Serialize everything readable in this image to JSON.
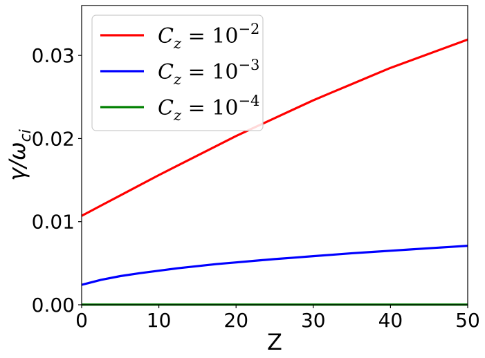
{
  "chart_data": {
    "type": "line",
    "xlabel": "Z",
    "ylabel": "γ/ω_ci",
    "xlim": [
      0,
      50
    ],
    "ylim": [
      0,
      0.036
    ],
    "x_ticks": [
      "0",
      "10",
      "20",
      "30",
      "40",
      "50"
    ],
    "y_ticks": [
      "0.00",
      "0.01",
      "0.02",
      "0.03"
    ],
    "legend_position": "upper-left",
    "grid": false,
    "x": [
      0,
      2.5,
      5,
      7.5,
      10,
      12.5,
      15,
      17.5,
      20,
      22.5,
      25,
      27.5,
      30,
      32.5,
      35,
      37.5,
      40,
      42.5,
      45,
      47.5,
      50
    ],
    "series": [
      {
        "name": "C_z = 10^-2",
        "legend_base": "C",
        "legend_sub": "z",
        "legend_eq": " = 10",
        "legend_exp": "−2",
        "color": "#ff0000",
        "values": [
          0.0107,
          0.01193,
          0.01315,
          0.01438,
          0.0156,
          0.01678,
          0.01795,
          0.01913,
          0.0203,
          0.02138,
          0.02245,
          0.02353,
          0.0246,
          0.02558,
          0.02655,
          0.02753,
          0.0285,
          0.02935,
          0.0302,
          0.03105,
          0.0319
        ]
      },
      {
        "name": "C_z = 10^-3",
        "legend_base": "C",
        "legend_sub": "z",
        "legend_eq": " = 10",
        "legend_exp": "−3",
        "color": "#0000ff",
        "values": [
          0.0024,
          0.003,
          0.00345,
          0.0038,
          0.0041,
          0.0044,
          0.00465,
          0.0049,
          0.0051,
          0.0053,
          0.0055,
          0.00567,
          0.00585,
          0.00602,
          0.0062,
          0.00635,
          0.0065,
          0.00665,
          0.0068,
          0.00695,
          0.0071
        ]
      },
      {
        "name": "C_z = 10^-4",
        "legend_base": "C",
        "legend_sub": "z",
        "legend_eq": " = 10",
        "legend_exp": "−4",
        "color": "#008000",
        "values": [
          2e-05,
          2e-05,
          2e-05,
          2e-05,
          2e-05,
          2e-05,
          2e-05,
          2e-05,
          2e-05,
          2e-05,
          2e-05,
          2e-05,
          2e-05,
          2e-05,
          2e-05,
          2e-05,
          2e-05,
          2e-05,
          2e-05,
          2e-05,
          2e-05
        ]
      }
    ]
  }
}
